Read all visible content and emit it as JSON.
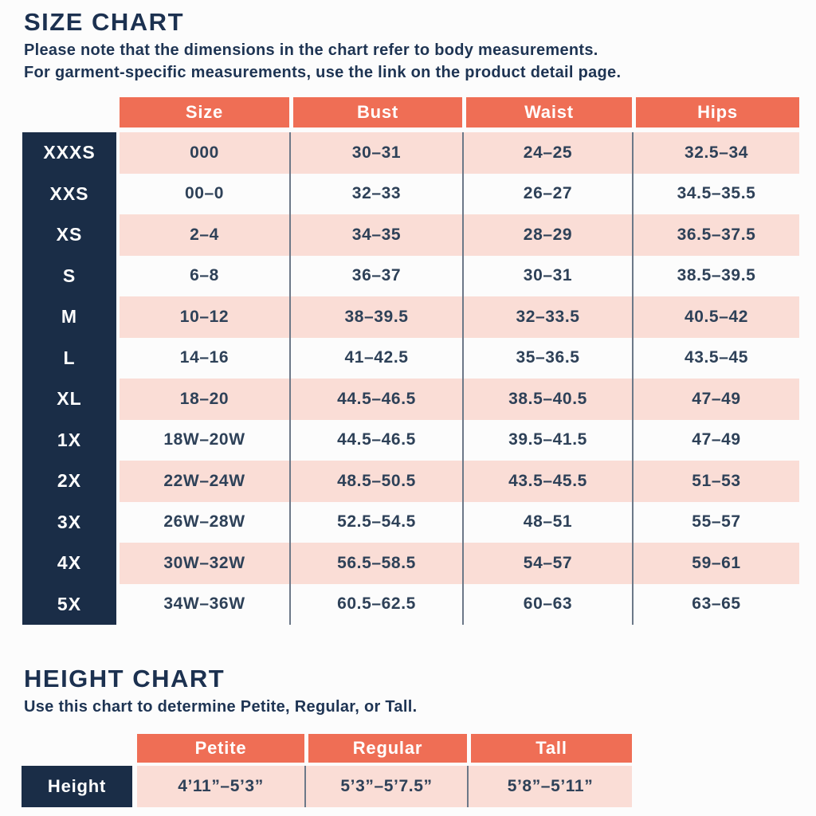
{
  "colors": {
    "coral_header": "#EF6E55",
    "pink_row": "#FADDD6",
    "navy_label": "#1A2D47",
    "text_navy": "#2E4158",
    "title_navy": "#1C3150",
    "divider_gray": "#6C7888"
  },
  "size_chart": {
    "title": "SIZE CHART",
    "note_line1": "Please note that the dimensions in the chart refer to body measurements.",
    "note_line2": "For garment-specific measurements, use the link on the product detail page.",
    "columns": [
      "Size",
      "Bust",
      "Waist",
      "Hips"
    ],
    "rows": [
      {
        "label": "XXXS",
        "size": "000",
        "bust": "30–31",
        "waist": "24–25",
        "hips": "32.5–34"
      },
      {
        "label": "XXS",
        "size": "00–0",
        "bust": "32–33",
        "waist": "26–27",
        "hips": "34.5–35.5"
      },
      {
        "label": "XS",
        "size": "2–4",
        "bust": "34–35",
        "waist": "28–29",
        "hips": "36.5–37.5"
      },
      {
        "label": "S",
        "size": "6–8",
        "bust": "36–37",
        "waist": "30–31",
        "hips": "38.5–39.5"
      },
      {
        "label": "M",
        "size": "10–12",
        "bust": "38–39.5",
        "waist": "32–33.5",
        "hips": "40.5–42"
      },
      {
        "label": "L",
        "size": "14–16",
        "bust": "41–42.5",
        "waist": "35–36.5",
        "hips": "43.5–45"
      },
      {
        "label": "XL",
        "size": "18–20",
        "bust": "44.5–46.5",
        "waist": "38.5–40.5",
        "hips": "47–49"
      },
      {
        "label": "1X",
        "size": "18W–20W",
        "bust": "44.5–46.5",
        "waist": "39.5–41.5",
        "hips": "47–49"
      },
      {
        "label": "2X",
        "size": "22W–24W",
        "bust": "48.5–50.5",
        "waist": "43.5–45.5",
        "hips": "51–53"
      },
      {
        "label": "3X",
        "size": "26W–28W",
        "bust": "52.5–54.5",
        "waist": "48–51",
        "hips": "55–57"
      },
      {
        "label": "4X",
        "size": "30W–32W",
        "bust": "56.5–58.5",
        "waist": "54–57",
        "hips": "59–61"
      },
      {
        "label": "5X",
        "size": "34W–36W",
        "bust": "60.5–62.5",
        "waist": "60–63",
        "hips": "63–65"
      }
    ]
  },
  "height_chart": {
    "title": "HEIGHT CHART",
    "note": "Use this chart to determine Petite, Regular, or Tall.",
    "columns": [
      "Petite",
      "Regular",
      "Tall"
    ],
    "row_label": "Height",
    "values": [
      "4’11”–5’3”",
      "5’3”–5’7.5”",
      "5’8”–5’11”"
    ]
  }
}
